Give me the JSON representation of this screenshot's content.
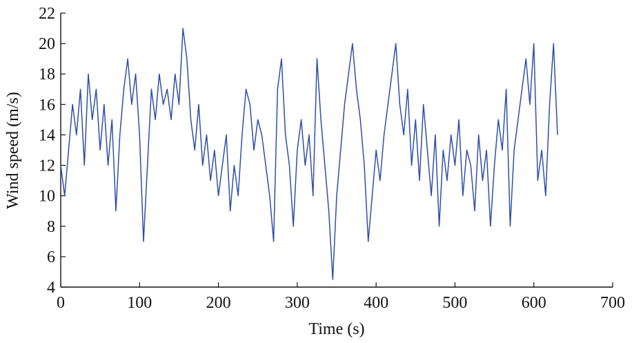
{
  "chart_data": {
    "type": "line",
    "xlabel": "Time (s)",
    "ylabel": "Wind speed (m/s)",
    "xlim": [
      0,
      700
    ],
    "xticks": [
      0,
      100,
      200,
      300,
      400,
      500,
      600,
      700
    ],
    "ylim": [
      4,
      22
    ],
    "yticks": [
      4,
      6,
      8,
      10,
      12,
      14,
      16,
      18,
      20,
      22
    ],
    "series": [
      {
        "color": "#2e4ea8",
        "x": [
          0,
          5,
          10,
          15,
          20,
          25,
          30,
          35,
          40,
          45,
          50,
          55,
          60,
          65,
          70,
          75,
          80,
          85,
          90,
          95,
          100,
          105,
          110,
          115,
          120,
          125,
          130,
          135,
          140,
          145,
          150,
          155,
          160,
          165,
          170,
          175,
          180,
          185,
          190,
          195,
          200,
          205,
          210,
          215,
          220,
          225,
          230,
          235,
          240,
          245,
          250,
          255,
          260,
          265,
          270,
          275,
          280,
          285,
          290,
          295,
          300,
          305,
          310,
          315,
          320,
          325,
          330,
          335,
          340,
          345,
          350,
          355,
          360,
          365,
          370,
          375,
          380,
          385,
          390,
          395,
          400,
          405,
          410,
          415,
          420,
          425,
          430,
          435,
          440,
          445,
          450,
          455,
          460,
          465,
          470,
          475,
          480,
          485,
          490,
          495,
          500,
          505,
          510,
          515,
          520,
          525,
          530,
          535,
          540,
          545,
          550,
          555,
          560,
          565,
          570,
          575,
          580,
          585,
          590,
          595,
          600,
          605,
          610,
          615,
          620,
          625,
          630
        ],
        "values": [
          12,
          10,
          13,
          16,
          14,
          17,
          12,
          18,
          15,
          17,
          13,
          16,
          12,
          15,
          9,
          14,
          17,
          19,
          16,
          18,
          14,
          7,
          12,
          17,
          15,
          18,
          16,
          17,
          15,
          18,
          16,
          21,
          19,
          15,
          13,
          16,
          12,
          14,
          11,
          13,
          10,
          12,
          14,
          9,
          12,
          10,
          14,
          17,
          16,
          13,
          15,
          14,
          12,
          10,
          7,
          17,
          19,
          14,
          12,
          8,
          13,
          15,
          12,
          14,
          10,
          19,
          15,
          12,
          9,
          4.5,
          10,
          13,
          16,
          18,
          20,
          17,
          15,
          12,
          7,
          10,
          13,
          11,
          14,
          16,
          18,
          20,
          16,
          14,
          17,
          12,
          15,
          11,
          16,
          13,
          10,
          14,
          8,
          13,
          11,
          14,
          12,
          15,
          10,
          13,
          12,
          9,
          14,
          11,
          13,
          8,
          12,
          15,
          13,
          17,
          8,
          13,
          15,
          17,
          19,
          16,
          20,
          11,
          13,
          10,
          16,
          20,
          14
        ]
      }
    ]
  }
}
